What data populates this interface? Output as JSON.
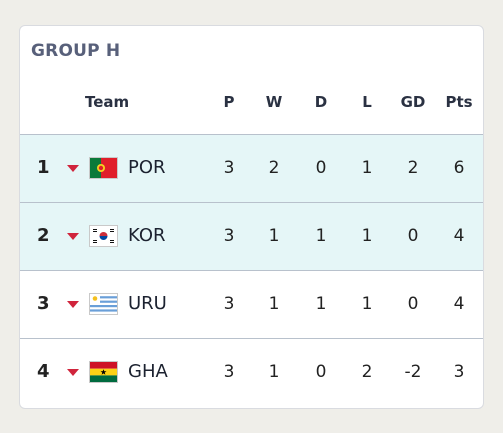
{
  "group_title": "GROUP H",
  "columns": {
    "team": "Team",
    "p": "P",
    "w": "W",
    "d": "D",
    "l": "L",
    "gd": "GD",
    "pts": "Pts"
  },
  "rows": [
    {
      "pos": "1",
      "team": "POR",
      "p": "3",
      "w": "2",
      "d": "0",
      "l": "1",
      "gd": "2",
      "pts": "6",
      "trend": "down",
      "flag_icon": "portugal-flag-icon"
    },
    {
      "pos": "2",
      "team": "KOR",
      "p": "3",
      "w": "1",
      "d": "1",
      "l": "1",
      "gd": "0",
      "pts": "4",
      "trend": "down",
      "flag_icon": "south-korea-flag-icon"
    },
    {
      "pos": "3",
      "team": "URU",
      "p": "3",
      "w": "1",
      "d": "1",
      "l": "1",
      "gd": "0",
      "pts": "4",
      "trend": "down",
      "flag_icon": "uruguay-flag-icon"
    },
    {
      "pos": "4",
      "team": "GHA",
      "p": "3",
      "w": "1",
      "d": "0",
      "l": "2",
      "gd": "-2",
      "pts": "3",
      "trend": "down",
      "flag_icon": "ghana-flag-icon"
    }
  ],
  "colors": {
    "qualified_row": "#e5f6f7",
    "trend_down": "#d0243c",
    "title": "#58607a"
  }
}
